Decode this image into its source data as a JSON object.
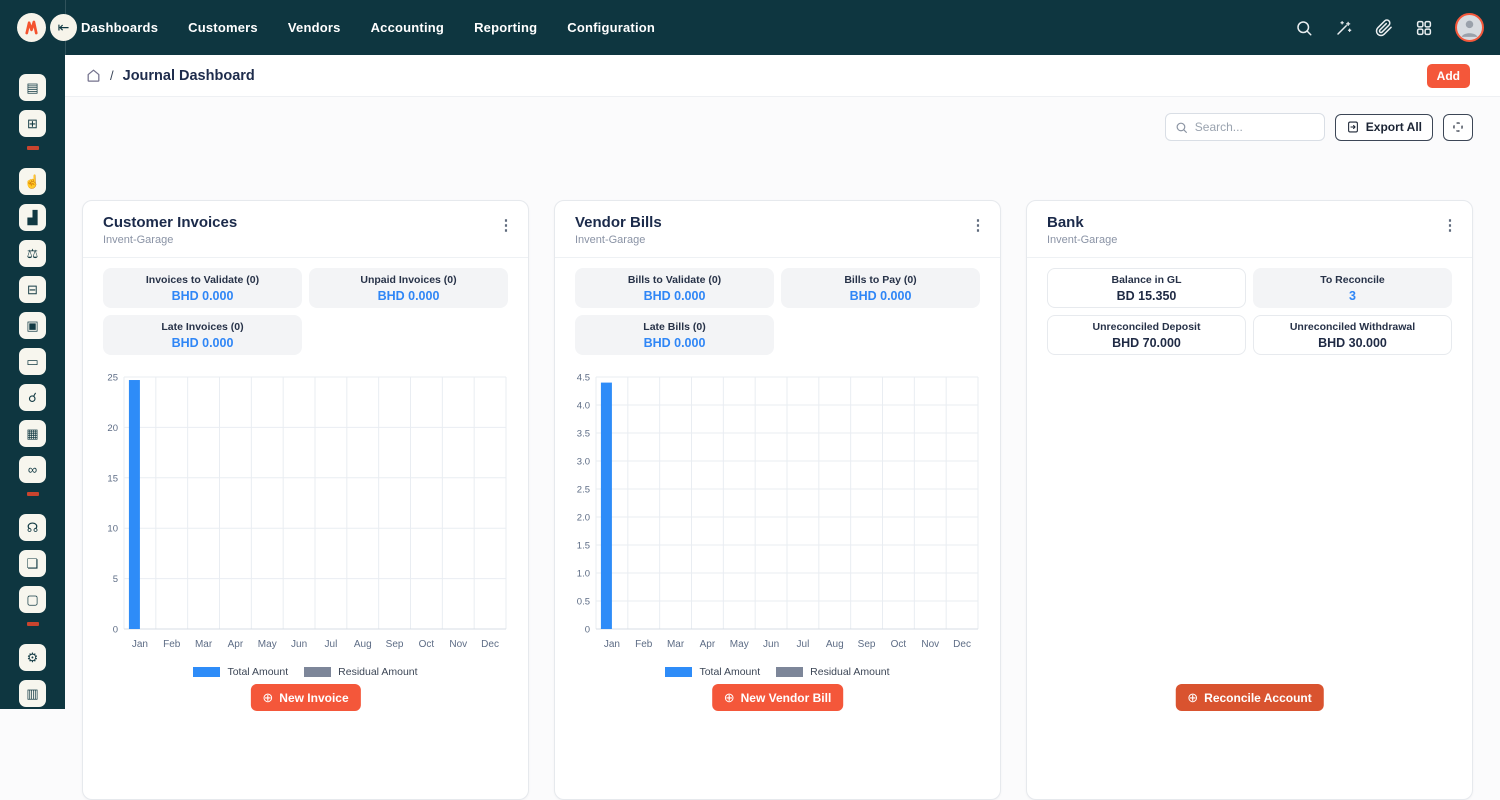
{
  "navbar": {
    "menu_items": [
      "Dashboards",
      "Customers",
      "Vendors",
      "Accounting",
      "Reporting",
      "Configuration"
    ],
    "right_icons": [
      "search-icon",
      "magic-wand-icon",
      "paperclip-icon",
      "apps-grid-icon",
      "user-avatar"
    ]
  },
  "icons": {
    "collapse_glyph": "⇤",
    "kebab_glyph": "⋮",
    "plus_glyph": "⊕"
  },
  "sidebar": {
    "items": [
      {
        "type": "icon",
        "name": "journal-icon",
        "glyph": "▤"
      },
      {
        "type": "icon",
        "name": "invoice-calculator-icon",
        "glyph": "⊞"
      },
      {
        "type": "divider"
      },
      {
        "type": "icon",
        "name": "hand-payment-icon",
        "glyph": "☝"
      },
      {
        "type": "icon",
        "name": "chart-growth-icon",
        "glyph": "▟"
      },
      {
        "type": "icon",
        "name": "scale-balance-icon",
        "glyph": "⚖"
      },
      {
        "type": "icon",
        "name": "clipboard-calculator-icon",
        "glyph": "⊟"
      },
      {
        "type": "icon",
        "name": "package-icon",
        "glyph": "▣"
      },
      {
        "type": "icon",
        "name": "cash-register-icon",
        "glyph": "▭"
      },
      {
        "type": "icon",
        "name": "customer-search-icon",
        "glyph": "☌"
      },
      {
        "type": "icon",
        "name": "calendar-check-icon",
        "glyph": "▦"
      },
      {
        "type": "icon",
        "name": "car-icon",
        "glyph": "∞"
      },
      {
        "type": "divider"
      },
      {
        "type": "icon",
        "name": "headphones-support-icon",
        "glyph": "☊"
      },
      {
        "type": "icon",
        "name": "folder-documents-icon",
        "glyph": "❏"
      },
      {
        "type": "icon",
        "name": "monitor-icon",
        "glyph": "▢"
      },
      {
        "type": "divider"
      },
      {
        "type": "icon",
        "name": "settings-gear-icon",
        "glyph": "⚙"
      },
      {
        "type": "icon",
        "name": "card-reader-icon",
        "glyph": "▥"
      }
    ]
  },
  "breadcrumb": {
    "page_title": "Journal Dashboard",
    "separator": "/"
  },
  "header_actions": {
    "add_label": "Add"
  },
  "toolbar": {
    "search_placeholder": "Search...",
    "export_label": "Export All"
  },
  "cards": [
    {
      "title": "Customer Invoices",
      "subtitle": "Invent-Garage",
      "stats": [
        {
          "label": "Invoices to Validate (0)",
          "value": "BHD 0.000",
          "value_style": "blue",
          "box_style": "fill"
        },
        {
          "label": "Unpaid Invoices (0)",
          "value": "BHD 0.000",
          "value_style": "blue",
          "box_style": "fill"
        },
        {
          "label": "Late Invoices (0)",
          "value": "BHD 0.000",
          "value_style": "blue",
          "box_style": "fill"
        }
      ],
      "action_label": "New Invoice",
      "chart_index": 0
    },
    {
      "title": "Vendor Bills",
      "subtitle": "Invent-Garage",
      "stats": [
        {
          "label": "Bills to Validate (0)",
          "value": "BHD 0.000",
          "value_style": "blue",
          "box_style": "fill"
        },
        {
          "label": "Bills to Pay (0)",
          "value": "BHD 0.000",
          "value_style": "blue",
          "box_style": "fill"
        },
        {
          "label": "Late Bills (0)",
          "value": "BHD 0.000",
          "value_style": "blue",
          "box_style": "fill"
        }
      ],
      "action_label": "New Vendor Bill",
      "chart_index": 1
    },
    {
      "title": "Bank",
      "subtitle": "Invent-Garage",
      "stats": [
        {
          "label": "Balance in GL",
          "value": "BD 15.350",
          "value_style": "dark",
          "box_style": "outline"
        },
        {
          "label": "To Reconcile",
          "value": "3",
          "value_style": "blue",
          "box_style": "fill"
        },
        {
          "label": "Unreconciled Deposit",
          "value": "BHD 70.000",
          "value_style": "dark",
          "box_style": "outline"
        },
        {
          "label": "Unreconciled Withdrawal",
          "value": "BHD 30.000",
          "value_style": "dark",
          "box_style": "outline"
        }
      ],
      "action_label": "Reconcile Account",
      "chart_index": null
    }
  ],
  "chart_data": [
    {
      "type": "bar",
      "title": "Customer Invoices monthly amounts",
      "categories": [
        "Jan",
        "Feb",
        "Mar",
        "Apr",
        "May",
        "Jun",
        "Jul",
        "Aug",
        "Sep",
        "Oct",
        "Nov",
        "Dec"
      ],
      "series": [
        {
          "name": "Total Amount",
          "color": "#2e8cf8",
          "values": [
            24.7,
            0,
            0,
            0,
            0,
            0,
            0,
            0,
            0,
            0,
            0,
            0
          ]
        },
        {
          "name": "Residual Amount",
          "color": "#7d8699",
          "values": [
            0,
            0,
            0,
            0,
            0,
            0,
            0,
            0,
            0,
            0,
            0,
            0
          ]
        }
      ],
      "xlabel": "",
      "ylabel": "",
      "ylim": [
        0,
        25
      ],
      "yticks": [
        0,
        5,
        10,
        15,
        20,
        25
      ],
      "ytick_labels": [
        "0",
        "5",
        "10",
        "15",
        "20",
        "25"
      ],
      "grid": true,
      "legend_position": "bottom"
    },
    {
      "type": "bar",
      "title": "Vendor Bills monthly amounts",
      "categories": [
        "Jan",
        "Feb",
        "Mar",
        "Apr",
        "May",
        "Jun",
        "Jul",
        "Aug",
        "Sep",
        "Oct",
        "Nov",
        "Dec"
      ],
      "series": [
        {
          "name": "Total Amount",
          "color": "#2e8cf8",
          "values": [
            4.4,
            0,
            0,
            0,
            0,
            0,
            0,
            0,
            0,
            0,
            0,
            0
          ]
        },
        {
          "name": "Residual Amount",
          "color": "#7d8699",
          "values": [
            0,
            0,
            0,
            0,
            0,
            0,
            0,
            0,
            0,
            0,
            0,
            0
          ]
        }
      ],
      "xlabel": "",
      "ylabel": "",
      "ylim": [
        0,
        4.5
      ],
      "yticks": [
        0,
        0.5,
        1.0,
        1.5,
        2.0,
        2.5,
        3.0,
        3.5,
        4.0,
        4.5
      ],
      "ytick_labels": [
        "0",
        "0.5",
        "1.0",
        "1.5",
        "2.0",
        "2.5",
        "3.0",
        "3.5",
        "4.0",
        "4.5"
      ],
      "grid": true,
      "legend_position": "bottom"
    }
  ],
  "colors": {
    "navbar_bg": "#0e3640",
    "accent_orange": "#f4573a",
    "reconcile_orange": "#d9532f",
    "value_blue": "#2f86f6",
    "bar_blue": "#2e8cf8",
    "residual_gray": "#7d8699"
  }
}
